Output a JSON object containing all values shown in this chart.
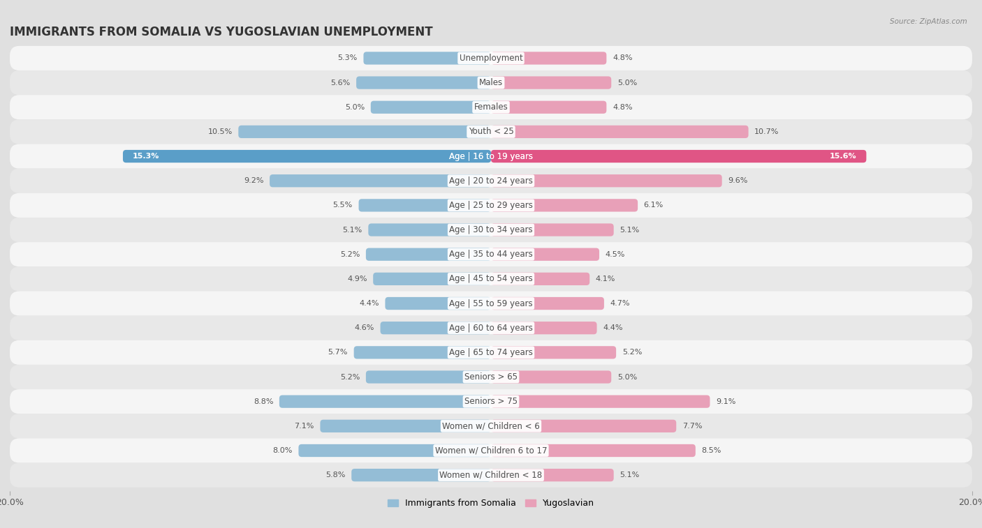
{
  "title": "IMMIGRANTS FROM SOMALIA VS YUGOSLAVIAN UNEMPLOYMENT",
  "source": "Source: ZipAtlas.com",
  "categories": [
    "Unemployment",
    "Males",
    "Females",
    "Youth < 25",
    "Age | 16 to 19 years",
    "Age | 20 to 24 years",
    "Age | 25 to 29 years",
    "Age | 30 to 34 years",
    "Age | 35 to 44 years",
    "Age | 45 to 54 years",
    "Age | 55 to 59 years",
    "Age | 60 to 64 years",
    "Age | 65 to 74 years",
    "Seniors > 65",
    "Seniors > 75",
    "Women w/ Children < 6",
    "Women w/ Children 6 to 17",
    "Women w/ Children < 18"
  ],
  "somalia_values": [
    5.3,
    5.6,
    5.0,
    10.5,
    15.3,
    9.2,
    5.5,
    5.1,
    5.2,
    4.9,
    4.4,
    4.6,
    5.7,
    5.2,
    8.8,
    7.1,
    8.0,
    5.8
  ],
  "yugoslavian_values": [
    4.8,
    5.0,
    4.8,
    10.7,
    15.6,
    9.6,
    6.1,
    5.1,
    4.5,
    4.1,
    4.7,
    4.4,
    5.2,
    5.0,
    9.1,
    7.7,
    8.5,
    5.1
  ],
  "somalia_color": "#94bdd6",
  "yugoslavian_color": "#e8a0b8",
  "highlight_somalia_color": "#5a9ec8",
  "highlight_yugoslavian_color": "#e05585",
  "xlim": 20.0,
  "bar_height": 0.52,
  "row_bg_even": "#f5f5f5",
  "row_bg_odd": "#e8e8e8",
  "background_color": "#e0e0e0",
  "label_fontsize": 8.5,
  "title_fontsize": 12,
  "value_fontsize": 8.0,
  "highlight_index": 4
}
